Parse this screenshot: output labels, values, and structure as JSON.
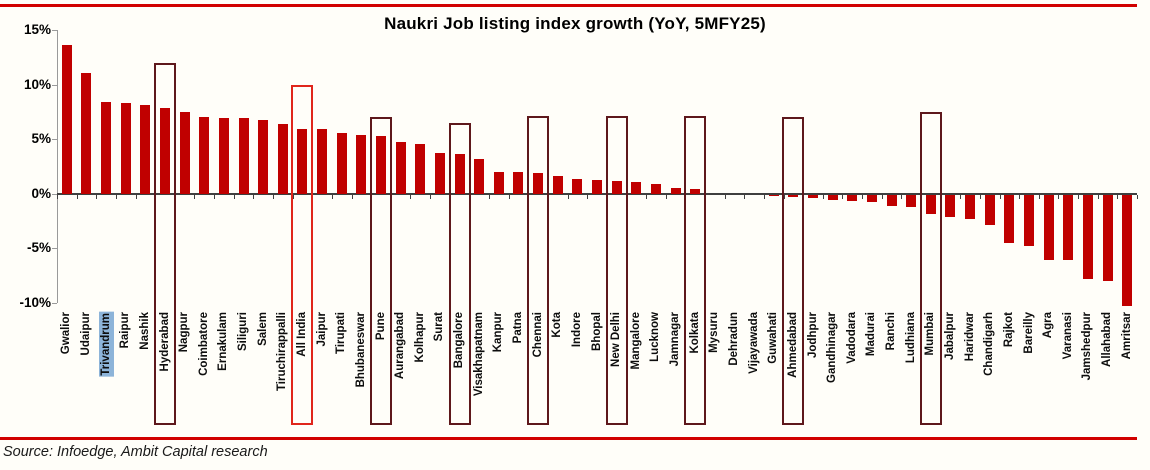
{
  "page": {
    "source_note": "Source: Infoedge, Ambit Capital research"
  },
  "chart_data": {
    "type": "bar",
    "title": "Naukri Job listing index  growth (YoY, 5MFY25)",
    "unit": "%",
    "ylim": [
      -10,
      15
    ],
    "grid": false,
    "y_ticks": [
      "15%",
      "10%",
      "5%",
      "0%",
      "-5%",
      "-10%"
    ],
    "y_tick_values": [
      15,
      10,
      5,
      0,
      -5,
      -10
    ],
    "categories": [
      "Gwalior",
      "Udaipur",
      "Trivandrum",
      "Raipur",
      "Nashik",
      "Hyderabad",
      "Nagpur",
      "Coimbatore",
      "Ernakulam",
      "Siliguri",
      "Salem",
      "Tiruchirappalli",
      "All India",
      "Jaipur",
      "Tirupati",
      "Bhubaneswar",
      "Pune",
      "Aurangabad",
      "Kolhapur",
      "Surat",
      "Bangalore",
      "Visakhapatnam",
      "Kanpur",
      "Patna",
      "Chennai",
      "Kota",
      "Indore",
      "Bhopal",
      "New Delhi",
      "Mangalore",
      "Lucknow",
      "Jamnagar",
      "Kolkata",
      "Mysuru",
      "Dehradun",
      "Vijayawada",
      "Guwahati",
      "Ahmedabad",
      "Jodhpur",
      "Gandhinagar",
      "Vadodara",
      "Madurai",
      "Ranchi",
      "Ludhiana",
      "Mumbai",
      "Jabalpur",
      "Haridwar",
      "Chandigarh",
      "Rajkot",
      "Bareilly",
      "Agra",
      "Varanasi",
      "Jamshedpur",
      "Allahabad",
      "Amritsar"
    ],
    "values": [
      13.6,
      11.1,
      8.4,
      8.3,
      8.1,
      7.9,
      7.5,
      7.0,
      6.9,
      6.9,
      6.8,
      6.4,
      5.9,
      5.9,
      5.6,
      5.4,
      5.3,
      4.7,
      4.6,
      3.7,
      3.6,
      3.2,
      2.0,
      2.0,
      1.9,
      1.6,
      1.4,
      1.3,
      1.2,
      1.1,
      0.9,
      0.5,
      0.4,
      0.0,
      0.0,
      0.0,
      -0.1,
      -0.2,
      -0.3,
      -0.5,
      -0.6,
      -0.7,
      -1.0,
      -1.1,
      -1.8,
      -2.0,
      -2.2,
      -2.8,
      -4.4,
      -4.7,
      -6.0,
      -6.0,
      -7.7,
      -7.9,
      -10.2
    ],
    "highlighted_label": "Trivandrum",
    "boxed_categories": [
      {
        "label": "Hyderabad",
        "box_top_pct": 12.0,
        "style": "dark"
      },
      {
        "label": "All India",
        "box_top_pct": 10.0,
        "style": "bright"
      },
      {
        "label": "Pune",
        "box_top_pct": 7.0,
        "style": "dark"
      },
      {
        "label": "Bangalore",
        "box_top_pct": 6.5,
        "style": "dark"
      },
      {
        "label": "Chennai",
        "box_top_pct": 7.1,
        "style": "dark"
      },
      {
        "label": "New Delhi",
        "box_top_pct": 7.1,
        "style": "dark"
      },
      {
        "label": "Kolkata",
        "box_top_pct": 7.1,
        "style": "dark"
      },
      {
        "label": "Ahmedabad",
        "box_top_pct": 7.0,
        "style": "dark"
      },
      {
        "label": "Mumbai",
        "box_top_pct": 7.5,
        "style": "dark"
      }
    ],
    "colors": {
      "bar": "#C00000",
      "box_dark": "#5E181C",
      "box_bright": "#E0261C",
      "label_highlight_bg": "#8DB4D9",
      "rule_red": "#D10000",
      "axis_dark": "#3F3F3F",
      "axis_light": "#9A9A9A"
    },
    "legend": null
  }
}
